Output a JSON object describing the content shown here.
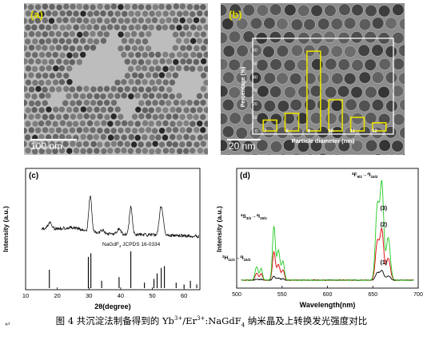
{
  "panel_a": {
    "label": "(a)",
    "scale_bar": "100 nm"
  },
  "panel_b": {
    "label": "(b)",
    "scale_bar": "20 nm",
    "inset": {
      "type": "bar",
      "ylabel": "Percentage (%)",
      "xlabel": "Particle diameter (nm)",
      "color": "#e8e000"
    }
  },
  "panel_c": {
    "label": "(c)",
    "ylabel": "Intensity (a.u.)",
    "xlabel": "2θ(degree)",
    "reference_label": "NaGdF",
    "reference_sub": "4",
    "reference_card": " JCPDS 16-0334"
  },
  "panel_d": {
    "label": "(d)",
    "ylabel": "Intensity (a.u.)",
    "xlabel": "Wavelength(nm)",
    "colors": {
      "1": "#000000",
      "2": "#dd0000",
      "3": "#22cc22"
    },
    "curve_labels": [
      "(1)",
      "(2)",
      "(3)"
    ],
    "transition_red": {
      "upper": "4",
      "sym": "F",
      "sub": "9/2",
      "arrow": "→",
      "lower": "4",
      "lsym": "I",
      "lsub": "15/2"
    },
    "transition_green_s": {
      "upper": "4",
      "sym": "S",
      "sub": "3/2",
      "arrow": "→",
      "lower": "4",
      "lsym": "I",
      "lsub": "15/2"
    },
    "transition_green_h": {
      "upper": "2",
      "sym": "H",
      "sub": "11/2",
      "arrow": "→",
      "lower": "4",
      "lsym": "I",
      "lsub": "15/2"
    }
  },
  "caption": {
    "text_pre": "图 4  共沉淀法制备得到的 Yb",
    "sup1": "3+",
    "text_mid": "/Er",
    "sup2": "3+",
    "text_post": ":NaGdF",
    "sub": "4",
    "text_end": "  纳米晶及上转换发光强度对比"
  },
  "return_mark": "↵",
  "chart_data": [
    {
      "type": "bar",
      "title": "",
      "xlabel": "Particle diameter (nm)",
      "ylabel": "Percentage (%)",
      "categories": [
        "7",
        "8",
        "9",
        "10",
        "11",
        "12"
      ],
      "values": [
        8,
        13,
        59,
        23,
        10,
        6
      ],
      "yticks": [
        0,
        10,
        20,
        30,
        40,
        50,
        60
      ],
      "ylim": [
        0,
        65
      ]
    },
    {
      "type": "line",
      "title": "",
      "xlabel": "2θ(degree)",
      "ylabel": "Intensity (a.u.)",
      "xlim": [
        10,
        65
      ],
      "xticks": [
        10,
        20,
        30,
        40,
        50,
        60
      ],
      "reference_peaks": [
        {
          "x": 17.5,
          "h": 0.5
        },
        {
          "x": 29.8,
          "h": 0.85
        },
        {
          "x": 30.6,
          "h": 0.95
        },
        {
          "x": 34.0,
          "h": 0.2
        },
        {
          "x": 39.5,
          "h": 0.3
        },
        {
          "x": 43.2,
          "h": 1.0
        },
        {
          "x": 47.5,
          "h": 0.15
        },
        {
          "x": 50.5,
          "h": 0.25
        },
        {
          "x": 51.5,
          "h": 0.4
        },
        {
          "x": 52.8,
          "h": 0.55
        },
        {
          "x": 53.8,
          "h": 0.6
        },
        {
          "x": 57.5,
          "h": 0.15
        },
        {
          "x": 60.0,
          "h": 0.1
        },
        {
          "x": 62.0,
          "h": 0.2
        },
        {
          "x": 64.0,
          "h": 0.1
        }
      ]
    },
    {
      "type": "line",
      "title": "",
      "xlabel": "Wavelength(nm)",
      "ylabel": "Intensity (a.u.)",
      "xlim": [
        500,
        700
      ],
      "xticks": [
        500,
        550,
        600,
        650,
        700
      ],
      "series": [
        {
          "name": "(1)",
          "peak_green": 0.04,
          "peak_red": 0.1
        },
        {
          "name": "(2)",
          "peak_green": 0.3,
          "peak_red": 0.52
        },
        {
          "name": "(3)",
          "peak_green": 0.57,
          "peak_red": 1.0
        }
      ]
    }
  ]
}
